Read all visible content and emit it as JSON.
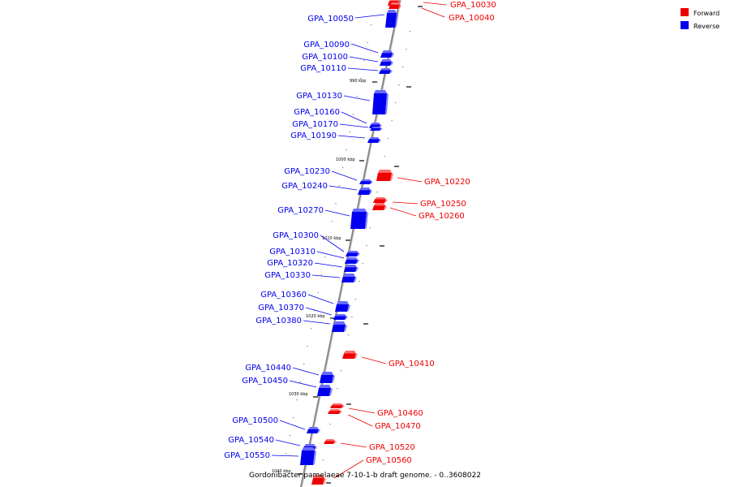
{
  "caption": "Gordonibacter pamelaeae 7-10-1-b draft genome. - 0..3608022",
  "legend": [
    {
      "label": "Forward",
      "color": "#ee0000"
    },
    {
      "label": "Reverse",
      "color": "#0000ee"
    }
  ],
  "colors": {
    "forward": "#ee0000",
    "forward_shade": "#ff6a6a",
    "reverse": "#0000ee",
    "reverse_shade": "#6a6aff",
    "axis": "#888888"
  },
  "ticks": [
    "990 kbp",
    "1000 kbp",
    "1010 kbp",
    "1020 kbp",
    "1030 kbp",
    "1040 kbp"
  ],
  "genes": [
    {
      "id": "GPA_10030",
      "strand": "forward"
    },
    {
      "id": "GPA_10040",
      "strand": "forward"
    },
    {
      "id": "GPA_10050",
      "strand": "reverse"
    },
    {
      "id": "GPA_10090",
      "strand": "reverse"
    },
    {
      "id": "GPA_10100",
      "strand": "reverse"
    },
    {
      "id": "GPA_10110",
      "strand": "reverse"
    },
    {
      "id": "GPA_10130",
      "strand": "reverse"
    },
    {
      "id": "GPA_10160",
      "strand": "reverse"
    },
    {
      "id": "GPA_10170",
      "strand": "reverse"
    },
    {
      "id": "GPA_10190",
      "strand": "reverse"
    },
    {
      "id": "GPA_10220",
      "strand": "forward"
    },
    {
      "id": "GPA_10230",
      "strand": "reverse"
    },
    {
      "id": "GPA_10240",
      "strand": "reverse"
    },
    {
      "id": "GPA_10250",
      "strand": "forward"
    },
    {
      "id": "GPA_10260",
      "strand": "forward"
    },
    {
      "id": "GPA_10270",
      "strand": "reverse"
    },
    {
      "id": "GPA_10300",
      "strand": "reverse"
    },
    {
      "id": "GPA_10310",
      "strand": "reverse"
    },
    {
      "id": "GPA_10320",
      "strand": "reverse"
    },
    {
      "id": "GPA_10330",
      "strand": "reverse"
    },
    {
      "id": "GPA_10360",
      "strand": "reverse"
    },
    {
      "id": "GPA_10370",
      "strand": "reverse"
    },
    {
      "id": "GPA_10380",
      "strand": "reverse"
    },
    {
      "id": "GPA_10410",
      "strand": "forward"
    },
    {
      "id": "GPA_10440",
      "strand": "reverse"
    },
    {
      "id": "GPA_10450",
      "strand": "reverse"
    },
    {
      "id": "GPA_10460",
      "strand": "forward"
    },
    {
      "id": "GPA_10470",
      "strand": "forward"
    },
    {
      "id": "GPA_10500",
      "strand": "reverse"
    },
    {
      "id": "GPA_10520",
      "strand": "forward"
    },
    {
      "id": "GPA_10540",
      "strand": "reverse"
    },
    {
      "id": "GPA_10550",
      "strand": "reverse"
    },
    {
      "id": "GPA_10560",
      "strand": "forward"
    }
  ]
}
